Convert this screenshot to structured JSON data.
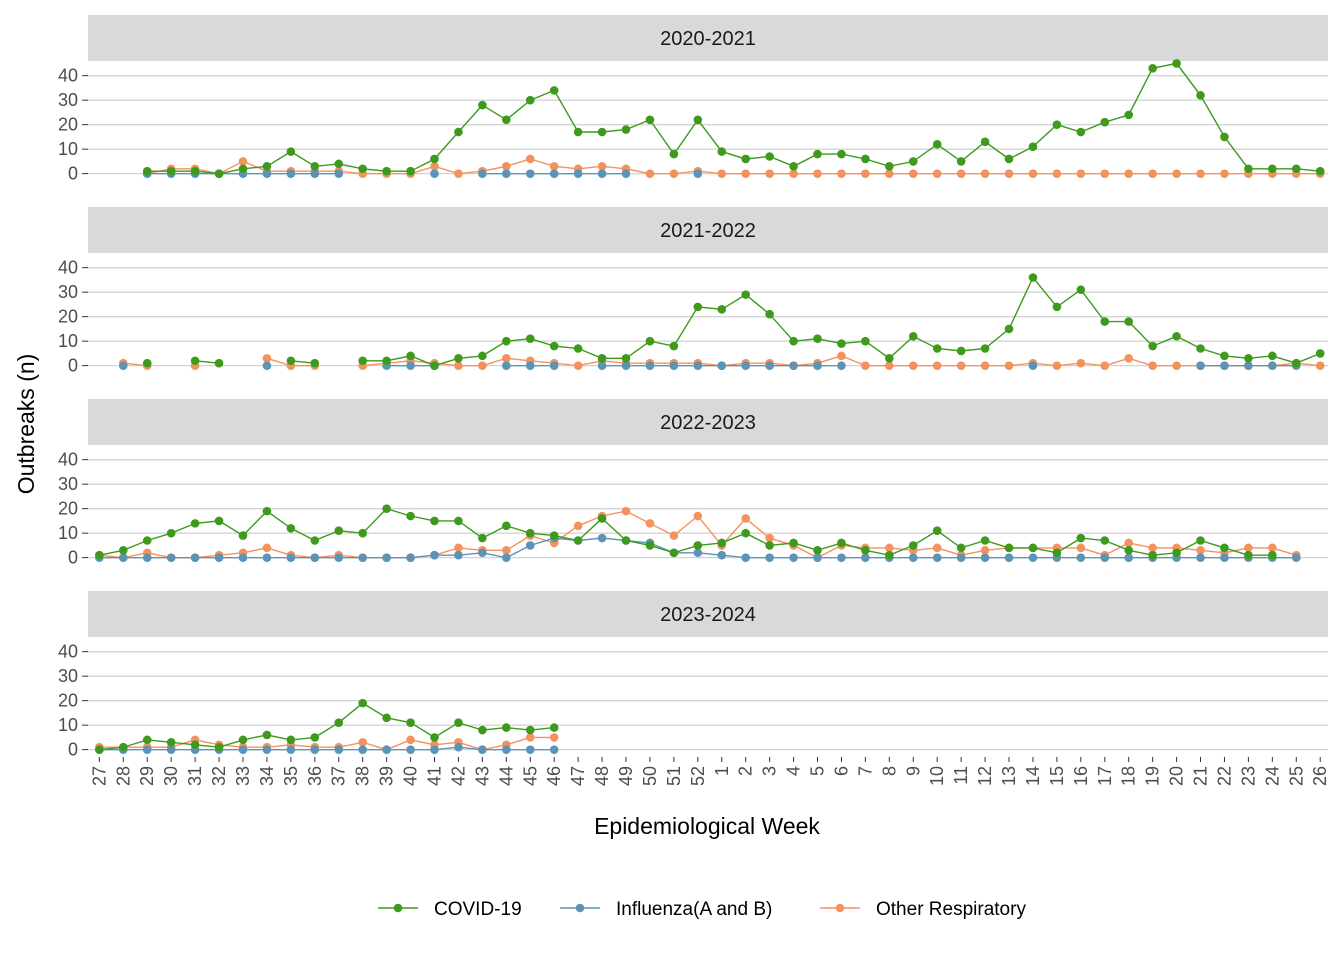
{
  "chart_data": {
    "type": "line",
    "ylabel": "Outbreaks (n)",
    "xlabel": "Epidemiological Week",
    "yticks": [
      0,
      10,
      20,
      30,
      40
    ],
    "ylim": [
      -3,
      46
    ],
    "weeks": [
      "27",
      "28",
      "29",
      "30",
      "31",
      "32",
      "33",
      "34",
      "35",
      "36",
      "37",
      "38",
      "39",
      "40",
      "41",
      "42",
      "43",
      "44",
      "45",
      "46",
      "47",
      "48",
      "49",
      "50",
      "51",
      "52",
      "1",
      "2",
      "3",
      "4",
      "5",
      "6",
      "7",
      "8",
      "9",
      "10",
      "11",
      "12",
      "13",
      "14",
      "15",
      "16",
      "17",
      "18",
      "19",
      "20",
      "21",
      "22",
      "23",
      "24",
      "25",
      "26"
    ],
    "legend_position": "bottom",
    "colors": {
      "COVID-19": "#3d9a1c",
      "Influenza(A and B)": "#5e93b5",
      "Other Respiratory": "#f4925d"
    },
    "legend": [
      "COVID-19",
      "Influenza(A and B)",
      "Other Respiratory"
    ],
    "panels": [
      {
        "label": "2020-2021",
        "series": [
          {
            "name": "COVID-19",
            "values": [
              null,
              null,
              1,
              1,
              1,
              0,
              2,
              3,
              9,
              3,
              4,
              2,
              1,
              1,
              6,
              17,
              28,
              22,
              30,
              34,
              17,
              17,
              18,
              22,
              8,
              22,
              9,
              6,
              7,
              3,
              8,
              8,
              6,
              3,
              5,
              12,
              5,
              13,
              6,
              11,
              20,
              17,
              21,
              24,
              43,
              45,
              32,
              15,
              2,
              2,
              2,
              1
            ]
          },
          {
            "name": "Influenza(A and B)",
            "values": [
              null,
              null,
              0,
              0,
              0,
              0,
              0,
              0,
              0,
              0,
              0,
              null,
              null,
              null,
              0,
              null,
              0,
              0,
              0,
              0,
              0,
              0,
              0,
              null,
              null,
              0,
              null,
              null,
              null,
              null,
              null,
              null,
              null,
              null,
              null,
              null,
              null,
              null,
              null,
              null,
              null,
              null,
              null,
              null,
              null,
              null,
              null,
              null,
              null,
              null,
              null,
              null
            ]
          },
          {
            "name": "Other Respiratory",
            "values": [
              null,
              null,
              0,
              2,
              2,
              0,
              5,
              1,
              1,
              1,
              1,
              0,
              0,
              0,
              3,
              0,
              1,
              3,
              6,
              3,
              2,
              3,
              2,
              0,
              0,
              1,
              0,
              0,
              0,
              0,
              0,
              0,
              0,
              0,
              0,
              0,
              0,
              0,
              0,
              0,
              0,
              0,
              0,
              0,
              0,
              0,
              0,
              0,
              0,
              0,
              0,
              0
            ]
          }
        ]
      },
      {
        "label": "2021-2022",
        "series": [
          {
            "name": "COVID-19",
            "values": [
              null,
              null,
              1,
              null,
              2,
              1,
              null,
              null,
              2,
              1,
              null,
              2,
              2,
              4,
              0,
              3,
              4,
              10,
              11,
              8,
              7,
              3,
              3,
              10,
              8,
              24,
              23,
              29,
              21,
              10,
              11,
              9,
              10,
              3,
              12,
              7,
              6,
              7,
              15,
              36,
              24,
              31,
              18,
              18,
              8,
              12,
              7,
              4,
              3,
              4,
              1,
              5
            ]
          },
          {
            "name": "Influenza(A and B)",
            "values": [
              null,
              0,
              null,
              null,
              null,
              null,
              null,
              0,
              null,
              null,
              null,
              null,
              0,
              0,
              0,
              null,
              null,
              0,
              0,
              0,
              null,
              0,
              0,
              0,
              0,
              0,
              0,
              0,
              0,
              0,
              0,
              0,
              null,
              null,
              null,
              null,
              null,
              null,
              null,
              0,
              null,
              null,
              null,
              null,
              null,
              null,
              0,
              0,
              0,
              0,
              0,
              null
            ]
          },
          {
            "name": "Other Respiratory",
            "values": [
              null,
              1,
              0,
              null,
              0,
              null,
              null,
              3,
              0,
              0,
              null,
              0,
              1,
              2,
              1,
              0,
              0,
              3,
              2,
              1,
              0,
              2,
              1,
              1,
              1,
              1,
              0,
              1,
              1,
              0,
              1,
              4,
              0,
              0,
              0,
              0,
              0,
              0,
              0,
              1,
              0,
              1,
              0,
              3,
              0,
              0,
              0,
              0,
              0,
              0,
              1,
              0
            ]
          }
        ]
      },
      {
        "label": "2022-2023",
        "series": [
          {
            "name": "COVID-19",
            "values": [
              1,
              3,
              7,
              10,
              14,
              15,
              9,
              19,
              12,
              7,
              11,
              10,
              20,
              17,
              15,
              15,
              8,
              13,
              10,
              9,
              7,
              16,
              7,
              5,
              2,
              5,
              6,
              10,
              5,
              6,
              3,
              6,
              3,
              1,
              5,
              11,
              4,
              7,
              4,
              4,
              2,
              8,
              7,
              3,
              1,
              2,
              7,
              4,
              1,
              1,
              null,
              null
            ]
          },
          {
            "name": "Influenza(A and B)",
            "values": [
              0,
              0,
              0,
              0,
              0,
              0,
              0,
              0,
              0,
              0,
              0,
              0,
              0,
              0,
              1,
              1,
              2,
              0,
              5,
              8,
              7,
              8,
              7,
              6,
              2,
              2,
              1,
              0,
              0,
              0,
              0,
              0,
              0,
              0,
              0,
              0,
              0,
              0,
              0,
              0,
              0,
              0,
              0,
              0,
              0,
              0,
              0,
              0,
              0,
              0,
              0,
              null
            ]
          },
          {
            "name": "Other Respiratory",
            "values": [
              1,
              0,
              2,
              0,
              0,
              1,
              2,
              4,
              1,
              0,
              1,
              0,
              0,
              0,
              1,
              4,
              3,
              3,
              9,
              6,
              13,
              17,
              19,
              14,
              9,
              17,
              5,
              16,
              8,
              5,
              0,
              5,
              4,
              4,
              3,
              4,
              1,
              3,
              4,
              4,
              4,
              4,
              1,
              6,
              4,
              4,
              3,
              2,
              4,
              4,
              1,
              null
            ]
          }
        ]
      },
      {
        "label": "2023-2024",
        "series": [
          {
            "name": "COVID-19",
            "values": [
              0,
              1,
              4,
              3,
              2,
              1,
              4,
              6,
              4,
              5,
              11,
              19,
              13,
              11,
              5,
              11,
              8,
              9,
              8,
              9,
              null,
              null,
              null,
              null,
              null,
              null,
              null,
              null,
              null,
              null,
              null,
              null,
              null,
              null,
              null,
              null,
              null,
              null,
              null,
              null,
              null,
              null,
              null,
              null,
              null,
              null,
              null,
              null,
              null,
              null,
              null,
              null
            ]
          },
          {
            "name": "Influenza(A and B)",
            "values": [
              0,
              0,
              0,
              0,
              0,
              0,
              0,
              0,
              0,
              0,
              0,
              0,
              0,
              0,
              0,
              1,
              0,
              0,
              0,
              0,
              null,
              null,
              null,
              null,
              null,
              null,
              null,
              null,
              null,
              null,
              null,
              null,
              null,
              null,
              null,
              null,
              null,
              null,
              null,
              null,
              null,
              null,
              null,
              null,
              null,
              null,
              null,
              null,
              null,
              null,
              null,
              null
            ]
          },
          {
            "name": "Other Respiratory",
            "values": [
              1,
              1,
              1,
              1,
              4,
              2,
              1,
              1,
              2,
              1,
              1,
              3,
              0,
              4,
              2,
              3,
              0,
              2,
              5,
              5,
              null,
              null,
              null,
              null,
              null,
              null,
              null,
              null,
              null,
              null,
              null,
              null,
              null,
              null,
              null,
              null,
              null,
              null,
              null,
              null,
              null,
              null,
              null,
              null,
              null,
              null,
              null,
              null,
              null,
              null,
              null,
              null
            ]
          }
        ]
      }
    ]
  }
}
